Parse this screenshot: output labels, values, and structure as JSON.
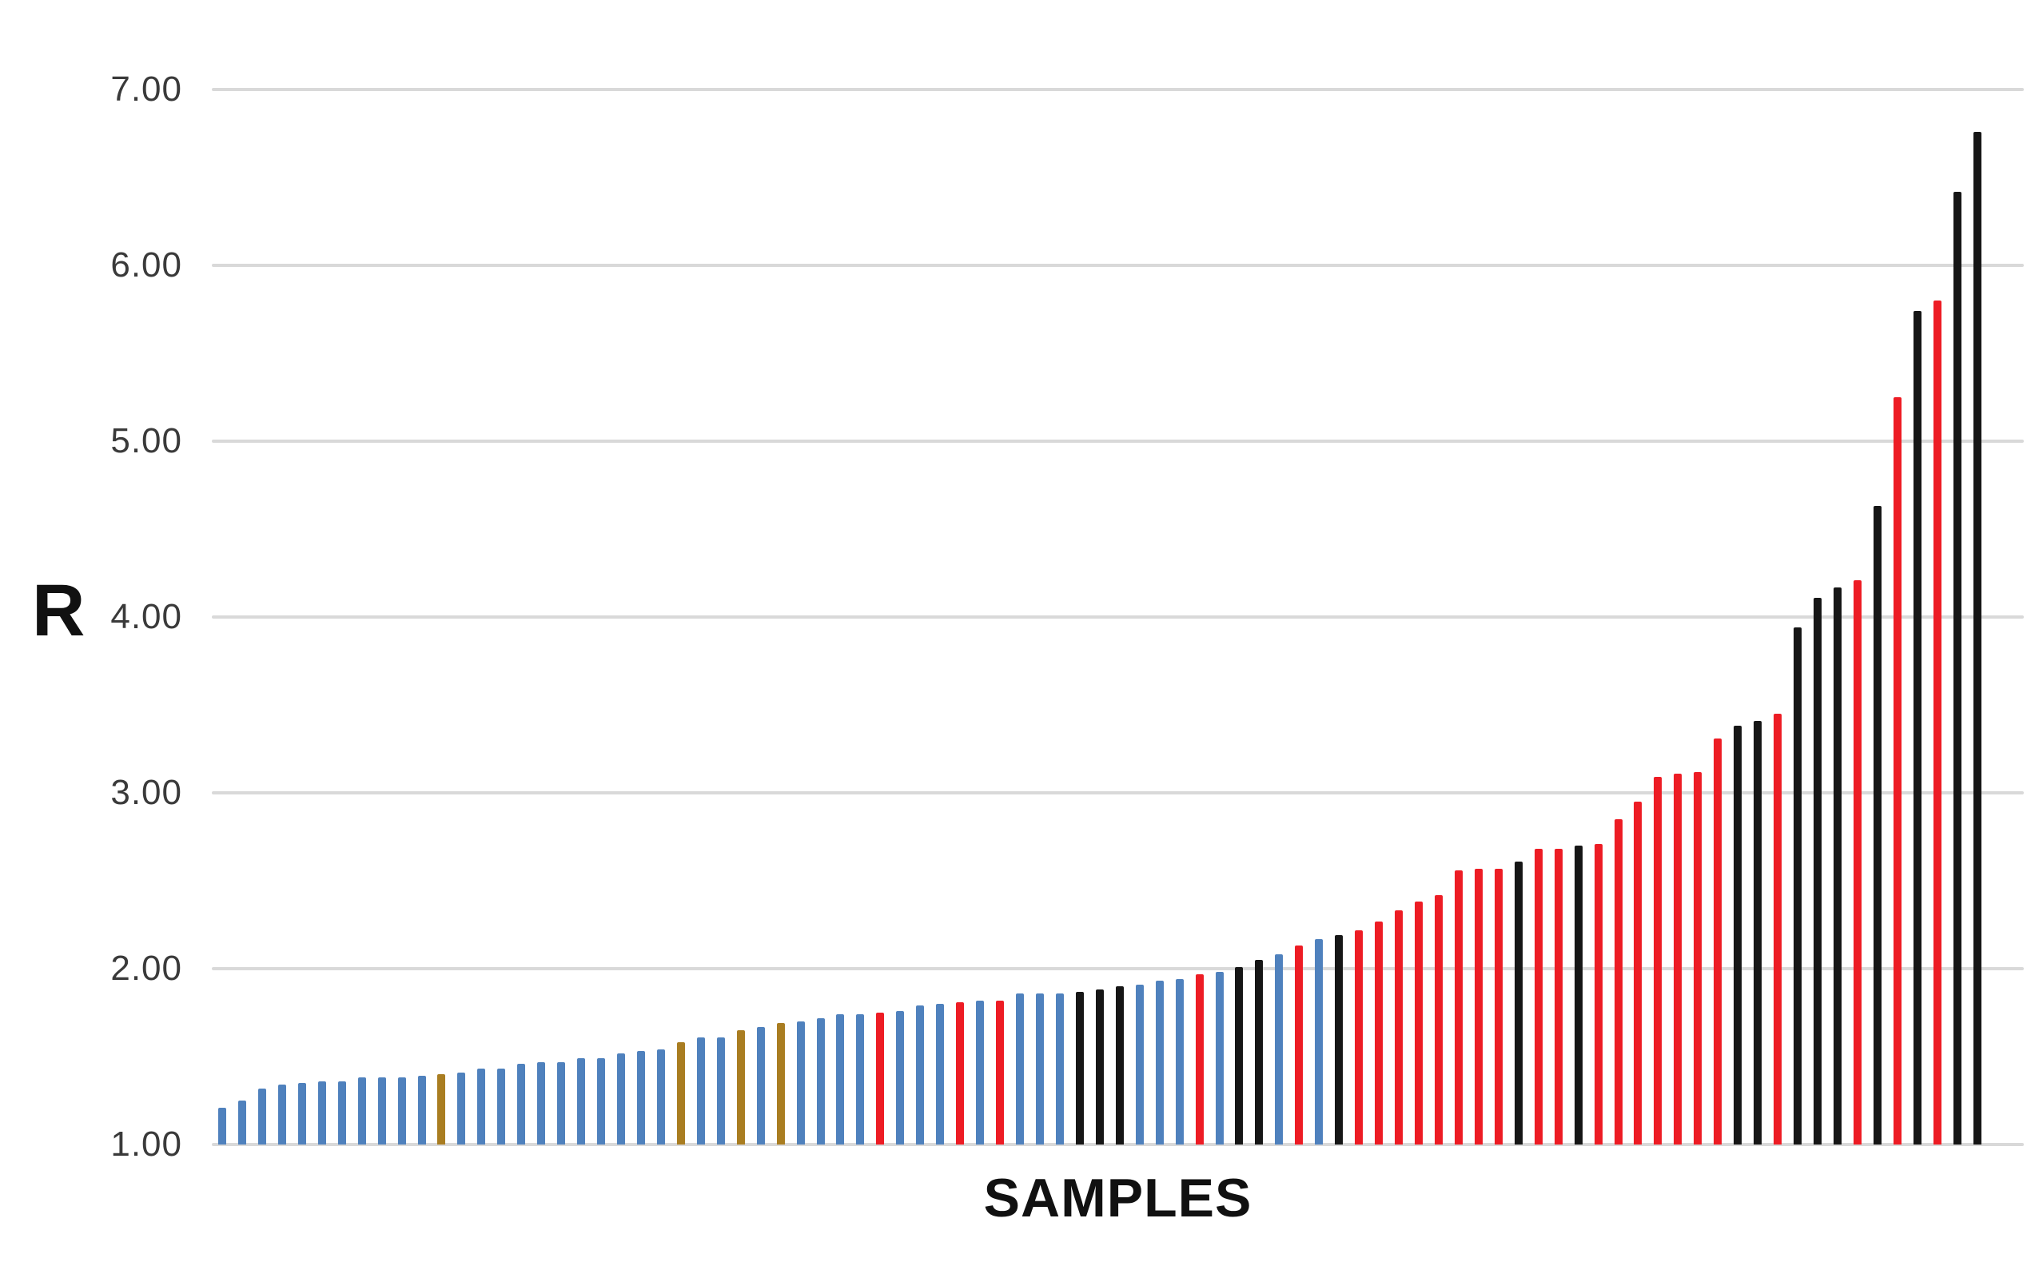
{
  "chart_data": {
    "type": "bar",
    "title": "",
    "xlabel": "SAMPLES",
    "ylabel": "R",
    "ylim": [
      1.0,
      7.0
    ],
    "grid": true,
    "legend": "none",
    "n_samples": 89,
    "x_tick_labels": "none",
    "yticks": [
      7,
      6,
      5,
      4,
      3,
      2,
      1
    ],
    "ytick_labels": [
      "7.00",
      "6.00",
      "5.00",
      "4.00",
      "3.00",
      "2.00",
      "1.00"
    ],
    "values": [
      1.21,
      1.25,
      1.32,
      1.34,
      1.35,
      1.36,
      1.36,
      1.38,
      1.38,
      1.38,
      1.39,
      1.4,
      1.41,
      1.43,
      1.43,
      1.46,
      1.47,
      1.47,
      1.49,
      1.49,
      1.52,
      1.53,
      1.54,
      1.58,
      1.61,
      1.61,
      1.65,
      1.67,
      1.69,
      1.7,
      1.72,
      1.74,
      1.74,
      1.75,
      1.76,
      1.79,
      1.8,
      1.81,
      1.82,
      1.82,
      1.86,
      1.86,
      1.86,
      1.87,
      1.88,
      1.9,
      1.91,
      1.93,
      1.94,
      1.97,
      1.98,
      2.01,
      2.05,
      2.08,
      2.13,
      2.17,
      2.19,
      2.22,
      2.27,
      2.33,
      2.38,
      2.42,
      2.56,
      2.57,
      2.57,
      2.61,
      2.68,
      2.68,
      2.7,
      2.71,
      2.85,
      2.95,
      3.09,
      3.11,
      3.12,
      3.31,
      3.38,
      3.41,
      3.45,
      3.94,
      4.11,
      4.17,
      4.21,
      4.63,
      5.25,
      5.74,
      5.8,
      6.42,
      6.76
    ],
    "bar_colors": [
      "B",
      "B",
      "B",
      "B",
      "B",
      "B",
      "B",
      "B",
      "B",
      "B",
      "B",
      "G",
      "B",
      "B",
      "B",
      "B",
      "B",
      "B",
      "B",
      "B",
      "B",
      "B",
      "B",
      "G",
      "B",
      "B",
      "G",
      "B",
      "G",
      "B",
      "B",
      "B",
      "B",
      "R",
      "B",
      "B",
      "B",
      "R",
      "B",
      "R",
      "B",
      "B",
      "B",
      "K",
      "K",
      "K",
      "B",
      "B",
      "B",
      "R",
      "B",
      "K",
      "K",
      "B",
      "R",
      "B",
      "K",
      "R",
      "R",
      "R",
      "R",
      "R",
      "R",
      "R",
      "R",
      "K",
      "R",
      "R",
      "K",
      "R",
      "R",
      "R",
      "R",
      "R",
      "R",
      "R",
      "K",
      "K",
      "R",
      "K",
      "K",
      "K",
      "R",
      "K",
      "R",
      "K",
      "R",
      "K",
      "K"
    ],
    "color_map": {
      "B": "#4F81BD",
      "G": "#A97D21",
      "R": "#ED1C24",
      "K": "#161616"
    },
    "gridline_color": "#d9d9d9",
    "tick_label_color": "#3a3a3a"
  }
}
